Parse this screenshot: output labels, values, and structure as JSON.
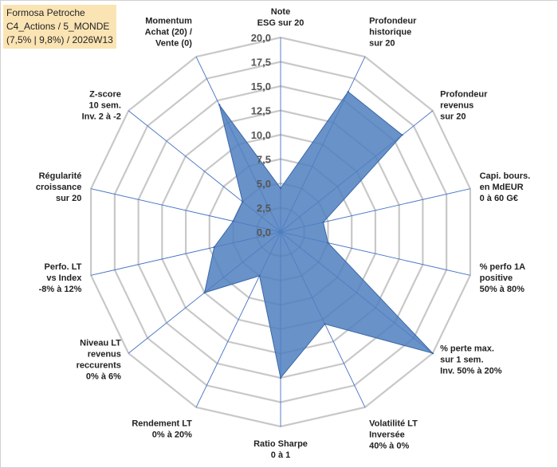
{
  "info": {
    "line1": "Formosa Petroche",
    "line2": "C4_Actions / 5_MONDE",
    "line3": "(7,5% | 9,8%) / 2026W13"
  },
  "colors": {
    "fill": "#4f7fbf",
    "stroke": "#3a68a8",
    "grid": "#c8c8c8",
    "spoke": "#4472c4",
    "info_bg": "#fbe4b4"
  },
  "chart_data": {
    "type": "radar",
    "rmin": 0,
    "rmax": 20,
    "tick_step": 2.5,
    "tick_labels": [
      "0,0",
      "2,5",
      "5,0",
      "7,5",
      "10,0",
      "12,5",
      "15,0",
      "17,5",
      "20,0"
    ],
    "axes": [
      [
        "Note",
        "ESG sur 20"
      ],
      [
        "Profondeur",
        "historique",
        "sur 20"
      ],
      [
        "Profondeur",
        "revenus",
        "sur 20"
      ],
      [
        "Capi. bours.",
        "en MdEUR",
        "0 à 60 G€"
      ],
      [
        "% perfo 1A",
        "positive",
        "50% à 80%"
      ],
      [
        "% perte max.",
        "sur 1 sem.",
        "Inv. 50% à 20%"
      ],
      [
        "Volatilité LT",
        "Inversée",
        "40% à 0%"
      ],
      [
        "Ratio Sharpe",
        "0 à 1"
      ],
      [
        "Rendement LT",
        "0% à 20%"
      ],
      [
        "Niveau LT",
        "revenus",
        "reccurents",
        "0% à 6%"
      ],
      [
        "Perfo. LT",
        "vs Index",
        "-8% à 12%"
      ],
      [
        "Régularité",
        "croissance",
        "sur 20"
      ],
      [
        "Z-score",
        "10 sem.",
        "Inv. 2 à -2"
      ],
      [
        "Momentum",
        "Achat (20) /",
        "Vente (0)"
      ]
    ],
    "values": [
      4.5,
      16,
      16,
      4.5,
      5,
      20,
      10.5,
      15,
      5,
      10,
      7,
      5,
      5,
      14.5
    ]
  }
}
